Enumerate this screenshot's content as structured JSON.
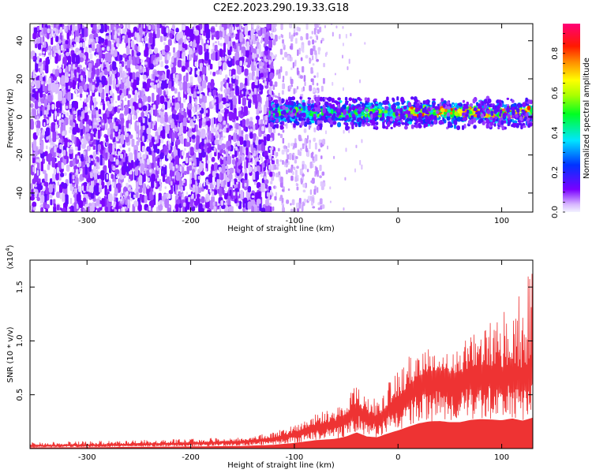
{
  "title": "C2E2.2023.290.19.33.G18",
  "colorbar": {
    "label": "Normalized spectral amplitude",
    "range": [
      0,
      0.95
    ],
    "ticks": [
      {
        "value": 0.0,
        "label": "0.0"
      },
      {
        "value": 0.2,
        "label": "0.2"
      },
      {
        "value": 0.4,
        "label": "0.4"
      },
      {
        "value": 0.6,
        "label": "0.6"
      },
      {
        "value": 0.8,
        "label": "0.8"
      }
    ]
  },
  "chart_data": [
    {
      "type": "heatmap",
      "xlabel": "Height of straight line (km)",
      "ylabel": "Frequency (Hz)",
      "xlim": [
        -355,
        130
      ],
      "ylim": [
        -50,
        49
      ],
      "x_ticks": [
        {
          "value": -300,
          "label": "-300"
        },
        {
          "value": -200,
          "label": "-200"
        },
        {
          "value": -100,
          "label": "-100"
        },
        {
          "value": 0,
          "label": "0"
        },
        {
          "value": 100,
          "label": "100"
        }
      ],
      "y_ticks": [
        {
          "value": -40,
          "label": "-40"
        },
        {
          "value": -20,
          "label": "-20"
        },
        {
          "value": 0,
          "label": "0"
        },
        {
          "value": 20,
          "label": "20"
        },
        {
          "value": 40,
          "label": "40"
        }
      ],
      "regions": [
        {
          "x_range": [
            -355,
            -122
          ],
          "freq_range": [
            -50,
            49
          ],
          "amplitude": "low, widespread"
        },
        {
          "x_range": [
            -122,
            -75
          ],
          "freq_range": [
            -50,
            49
          ],
          "amplitude": "low, sparse"
        },
        {
          "x_range": [
            -125,
            130
          ],
          "freq_range": [
            -6,
            10
          ],
          "amplitude": "high band near 2 Hz, peak ~0.9 from 0 to 110 km"
        }
      ]
    },
    {
      "type": "area",
      "xlabel": "Height of straight line (km)",
      "ylabel": "SNR (10 * v/v)",
      "y_multiplier": "(x10",
      "y_multiplier_exp": "4",
      "y_multiplier_close": ")",
      "xlim": [
        -355,
        130
      ],
      "ylim": [
        0,
        17500
      ],
      "x_ticks": [
        {
          "value": -300,
          "label": "-300"
        },
        {
          "value": -200,
          "label": "-200"
        },
        {
          "value": -100,
          "label": "-100"
        },
        {
          "value": 0,
          "label": "0"
        },
        {
          "value": 100,
          "label": "100"
        }
      ],
      "y_ticks": [
        {
          "value": 5000,
          "label": "0.5"
        },
        {
          "value": 10000,
          "label": "1.0"
        },
        {
          "value": 15000,
          "label": "1.5"
        }
      ],
      "color": "#ee3333",
      "x": [
        -355,
        -300,
        -250,
        -200,
        -150,
        -120,
        -100,
        -80,
        -60,
        -50,
        -40,
        -30,
        -20,
        -10,
        0,
        10,
        20,
        30,
        40,
        50,
        60,
        70,
        80,
        90,
        100,
        110,
        120,
        125,
        130
      ],
      "y": [
        300,
        350,
        450,
        550,
        700,
        1000,
        1500,
        2200,
        2600,
        3200,
        4300,
        3200,
        3000,
        4000,
        4800,
        5800,
        6700,
        7200,
        7300,
        7000,
        7000,
        7600,
        7800,
        7700,
        7500,
        8000,
        7400,
        7800,
        8200
      ],
      "peaks": [
        600,
        700,
        800,
        900,
        1100,
        1500,
        2300,
        3200,
        4000,
        5000,
        6400,
        5000,
        4800,
        6000,
        7500,
        8500,
        9000,
        9500,
        9000,
        8800,
        9600,
        10500,
        11000,
        12000,
        12500,
        13500,
        14500,
        16000,
        17200
      ]
    }
  ]
}
